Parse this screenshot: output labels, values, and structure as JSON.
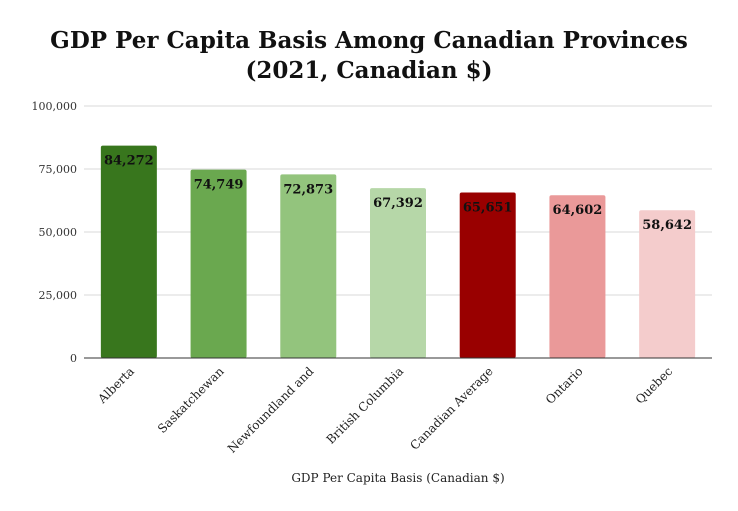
{
  "chart_data": {
    "type": "bar",
    "title_lines": [
      "GDP Per Capita Basis Among Canadian Provinces",
      "(2021, Canadian $)"
    ],
    "xlabel": "GDP Per Capita Basis (Canadian $)",
    "ylabel": "",
    "ylim": [
      0,
      100000
    ],
    "yticks": [
      0,
      25000,
      50000,
      75000,
      100000
    ],
    "ytick_labels": [
      "0",
      "25,000",
      "50,000",
      "75,000",
      "100,000"
    ],
    "grid": true,
    "categories": [
      "Alberta",
      "Saskatchewan",
      "Newfoundland and",
      "British Columbia",
      "Canadian Average",
      "Ontario",
      "Quebec"
    ],
    "values": [
      84272,
      74749,
      72873,
      67392,
      65651,
      64602,
      58642
    ],
    "value_labels": [
      "84,272",
      "74,749",
      "72,873",
      "67,392",
      "65,651",
      "64,602",
      "58,642"
    ],
    "colors": [
      "#38761d",
      "#6aa84f",
      "#93c47d",
      "#b6d7a8",
      "#990000",
      "#ea9999",
      "#f4cccc"
    ]
  }
}
